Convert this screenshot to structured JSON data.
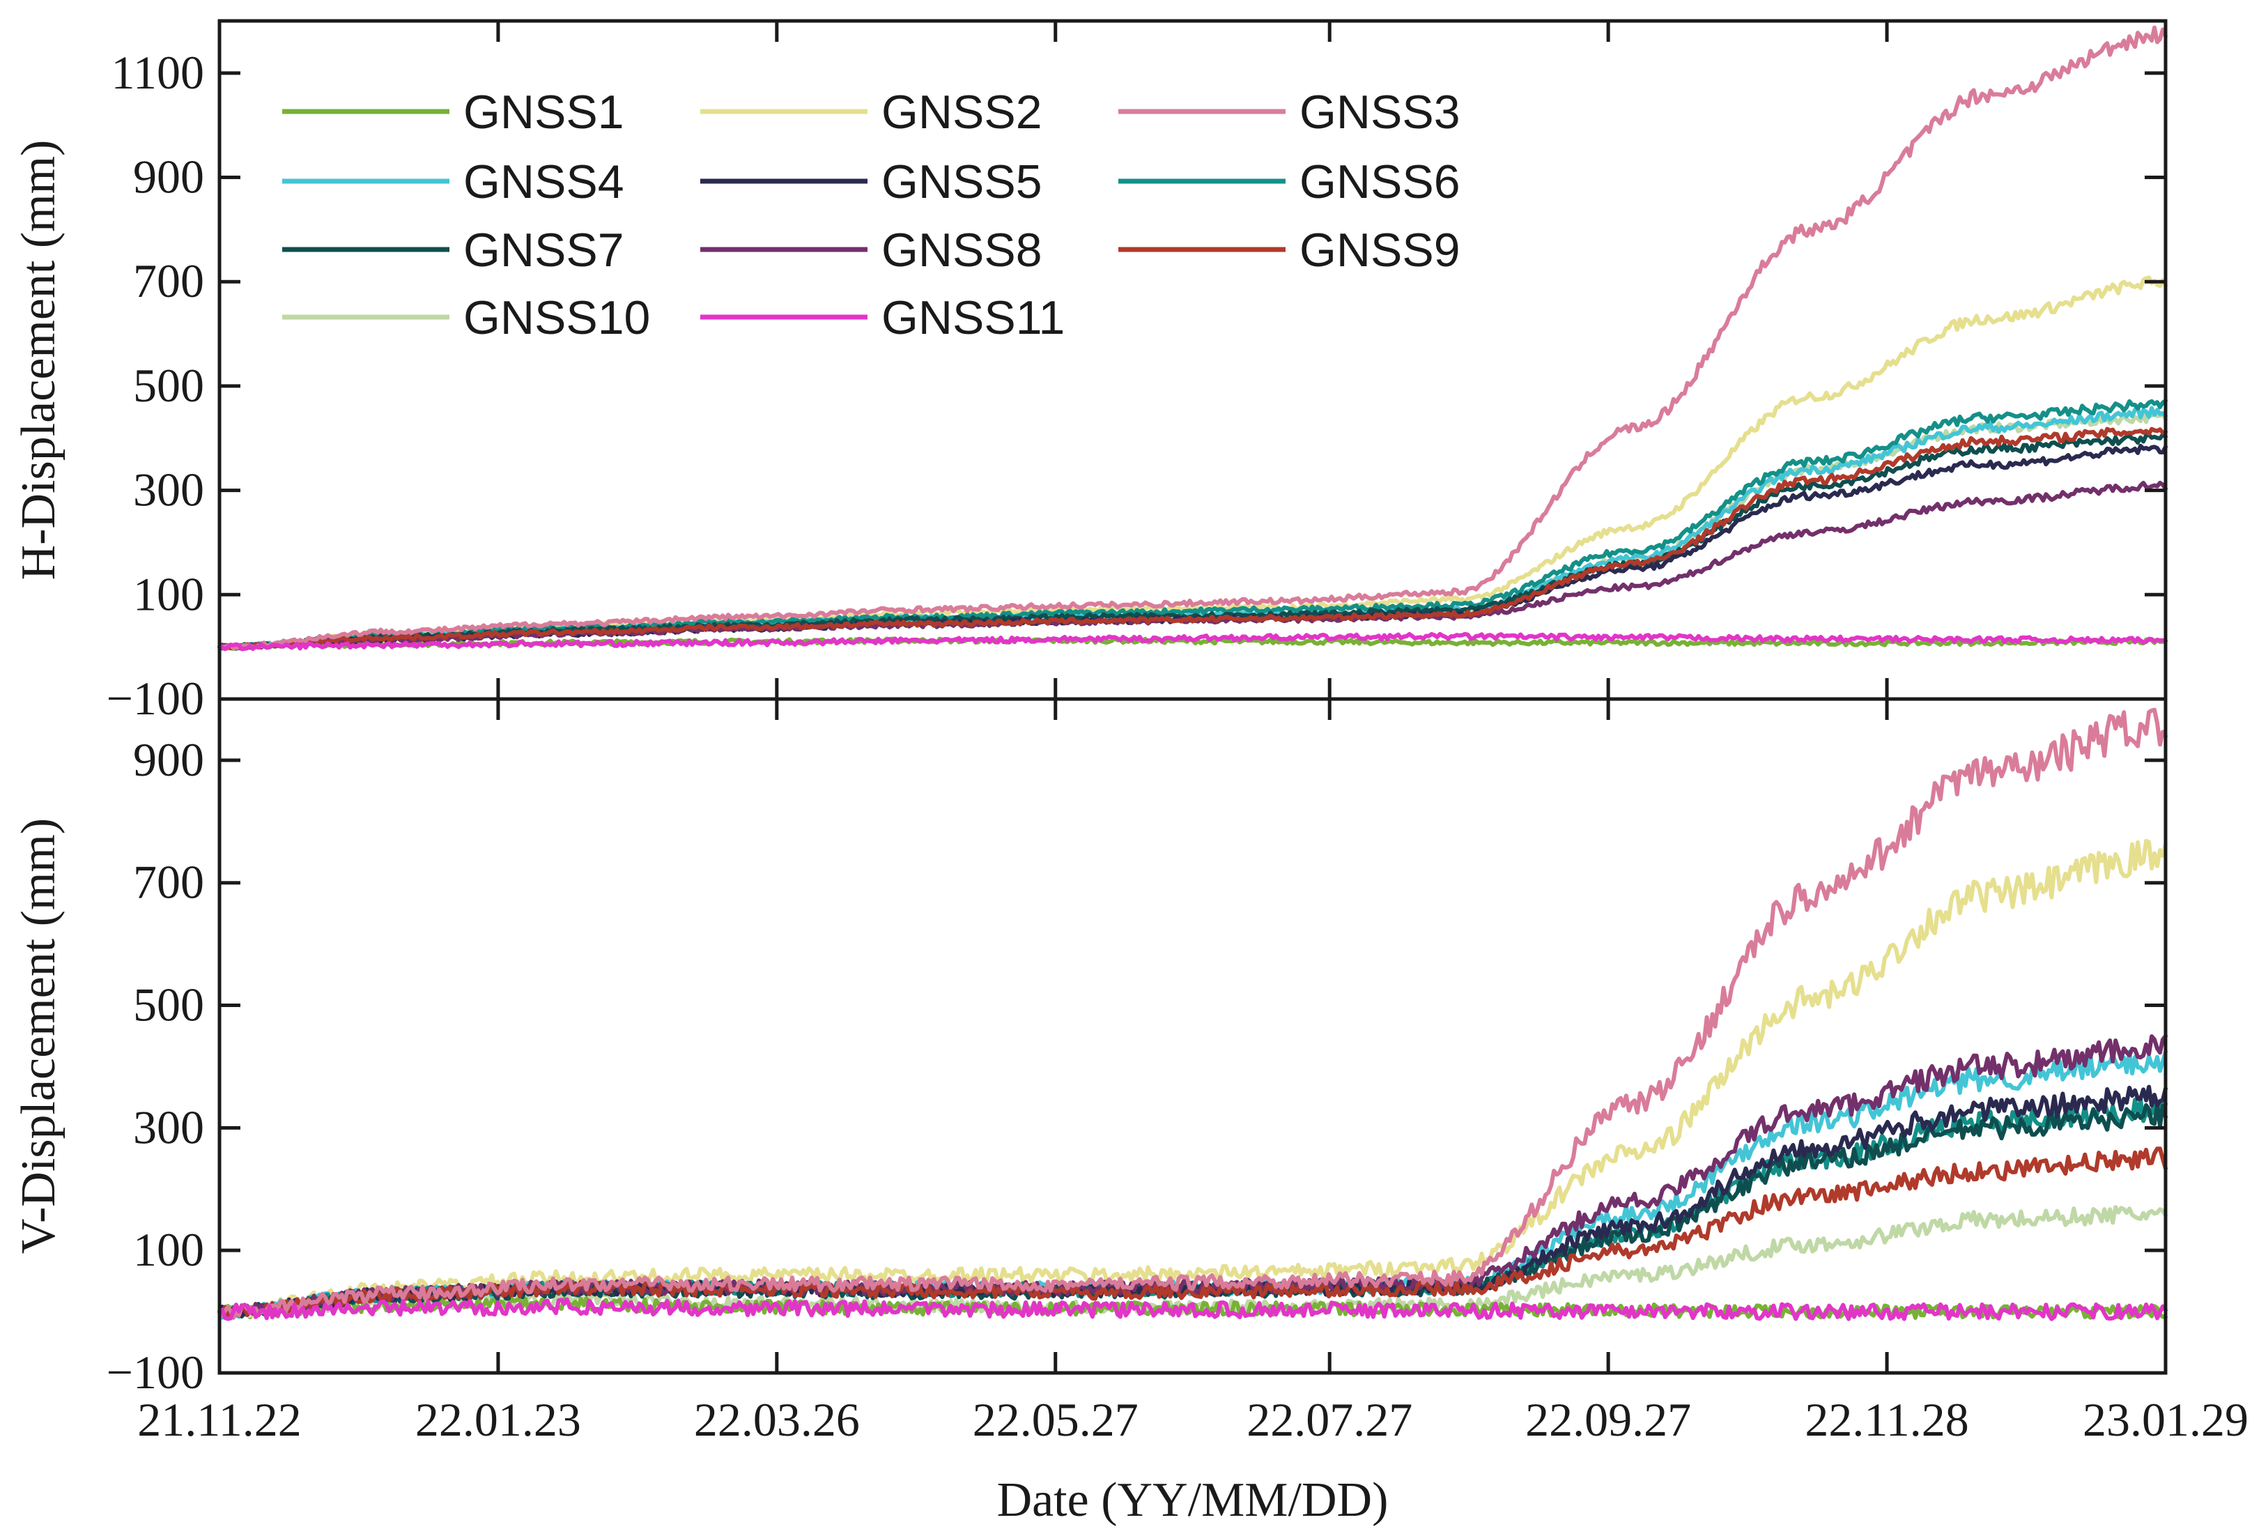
{
  "chart_data": [
    {
      "type": "line",
      "panel": "top",
      "ylabel": "H-Displacement (mm)",
      "ylim": [
        -100,
        1200
      ],
      "yticks": [
        -100,
        100,
        300,
        500,
        700,
        900,
        1100
      ],
      "ytick_labels": [
        "−100",
        "100",
        "300",
        "500",
        "700",
        "900",
        "1100"
      ],
      "xlim": [
        0,
        433
      ],
      "noise": 4,
      "series": [
        {
          "name": "GNSS1",
          "color": "#78b136",
          "values": [
            0,
            5,
            8,
            10,
            12,
            12,
            10,
            8,
            8,
            7,
            8,
            10
          ]
        },
        {
          "name": "GNSS2",
          "color": "#e5df8e",
          "values": [
            0,
            25,
            42,
            50,
            65,
            72,
            76,
            90,
            230,
            480,
            630,
            700
          ]
        },
        {
          "name": "GNSS3",
          "color": "#d97c9a",
          "values": [
            0,
            30,
            45,
            58,
            72,
            80,
            88,
            105,
            420,
            800,
            1060,
            1175
          ]
        },
        {
          "name": "GNSS4",
          "color": "#43c5d6",
          "values": [
            0,
            22,
            35,
            45,
            55,
            60,
            65,
            72,
            170,
            340,
            420,
            450
          ]
        },
        {
          "name": "GNSS5",
          "color": "#2a2a50",
          "values": [
            0,
            15,
            25,
            35,
            45,
            50,
            55,
            62,
            150,
            290,
            350,
            380
          ]
        },
        {
          "name": "GNSS6",
          "color": "#149088",
          "values": [
            0,
            22,
            37,
            48,
            58,
            66,
            72,
            80,
            185,
            355,
            440,
            465
          ]
        },
        {
          "name": "GNSS7",
          "color": "#0f4e4f",
          "values": [
            0,
            20,
            32,
            42,
            52,
            58,
            62,
            70,
            160,
            310,
            380,
            400
          ]
        },
        {
          "name": "GNSS8",
          "color": "#73306b",
          "values": [
            0,
            14,
            25,
            35,
            42,
            48,
            52,
            58,
            115,
            220,
            280,
            310
          ]
        },
        {
          "name": "GNSS9",
          "color": "#b03a2b",
          "values": [
            0,
            18,
            28,
            38,
            45,
            50,
            55,
            62,
            160,
            320,
            395,
            415
          ]
        },
        {
          "name": "GNSS10",
          "color": "#bfd8a6",
          "values": [
            0,
            20,
            30,
            40,
            50,
            55,
            60,
            68,
            170,
            340,
            420,
            440
          ]
        },
        {
          "name": "GNSS11",
          "color": "#e235c8",
          "values": [
            0,
            4,
            6,
            8,
            12,
            15,
            18,
            20,
            18,
            15,
            14,
            12
          ]
        }
      ]
    },
    {
      "type": "line",
      "panel": "bottom",
      "ylabel": "V-Displacement (mm)",
      "xlabel": "Date (YY/MM/DD)",
      "ylim": [
        -100,
        1000
      ],
      "yticks": [
        -100,
        100,
        300,
        500,
        700,
        900
      ],
      "ytick_labels": [
        "−100",
        "100",
        "300",
        "500",
        "700",
        "900"
      ],
      "xlim": [
        0,
        433
      ],
      "xticks": [
        0,
        62,
        124,
        186,
        247,
        309,
        371,
        433
      ],
      "xtick_labels": [
        "21.11.22",
        "22.01.23",
        "22.03.26",
        "22.05.27",
        "22.07.27",
        "22.09.27",
        "22.11.28",
        "23.01.29"
      ],
      "noise": 10,
      "series": [
        {
          "name": "GNSS1",
          "color": "#78b136",
          "values": [
            0,
            10,
            12,
            8,
            5,
            5,
            5,
            3,
            2,
            0,
            0,
            0
          ]
        },
        {
          "name": "GNSS2",
          "color": "#e5df8e",
          "values": [
            0,
            40,
            55,
            60,
            60,
            60,
            65,
            75,
            260,
            510,
            680,
            745
          ]
        },
        {
          "name": "GNSS3",
          "color": "#d97c9a",
          "values": [
            0,
            30,
            45,
            45,
            45,
            45,
            50,
            55,
            340,
            680,
            880,
            960
          ]
        },
        {
          "name": "GNSS4",
          "color": "#43c5d6",
          "values": [
            0,
            30,
            40,
            40,
            38,
            38,
            40,
            45,
            160,
            310,
            380,
            410
          ]
        },
        {
          "name": "GNSS5",
          "color": "#2a2a50",
          "values": [
            0,
            28,
            38,
            38,
            36,
            36,
            38,
            40,
            140,
            270,
            330,
            350
          ]
        },
        {
          "name": "GNSS6",
          "color": "#149088",
          "values": [
            0,
            28,
            38,
            38,
            36,
            36,
            38,
            40,
            130,
            250,
            310,
            330
          ]
        },
        {
          "name": "GNSS7",
          "color": "#0f4e4f",
          "values": [
            0,
            25,
            35,
            35,
            32,
            32,
            35,
            38,
            125,
            245,
            300,
            320
          ]
        },
        {
          "name": "GNSS8",
          "color": "#73306b",
          "values": [
            0,
            30,
            40,
            40,
            38,
            38,
            42,
            48,
            180,
            330,
            400,
            430
          ]
        },
        {
          "name": "GNSS9",
          "color": "#b03a2b",
          "values": [
            0,
            28,
            38,
            36,
            34,
            32,
            34,
            38,
            100,
            190,
            230,
            250
          ]
        },
        {
          "name": "GNSS10",
          "color": "#bfd8a6",
          "values": [
            0,
            15,
            20,
            15,
            10,
            8,
            8,
            12,
            60,
            110,
            150,
            160
          ]
        },
        {
          "name": "GNSS11",
          "color": "#e235c8",
          "values": [
            0,
            5,
            8,
            6,
            4,
            3,
            3,
            2,
            1,
            0,
            0,
            0
          ]
        }
      ]
    }
  ],
  "legend": {
    "columns": 3,
    "order": [
      "GNSS1",
      "GNSS2",
      "GNSS3",
      "GNSS4",
      "GNSS5",
      "GNSS6",
      "GNSS7",
      "GNSS8",
      "GNSS9",
      "GNSS10",
      "GNSS11"
    ]
  }
}
